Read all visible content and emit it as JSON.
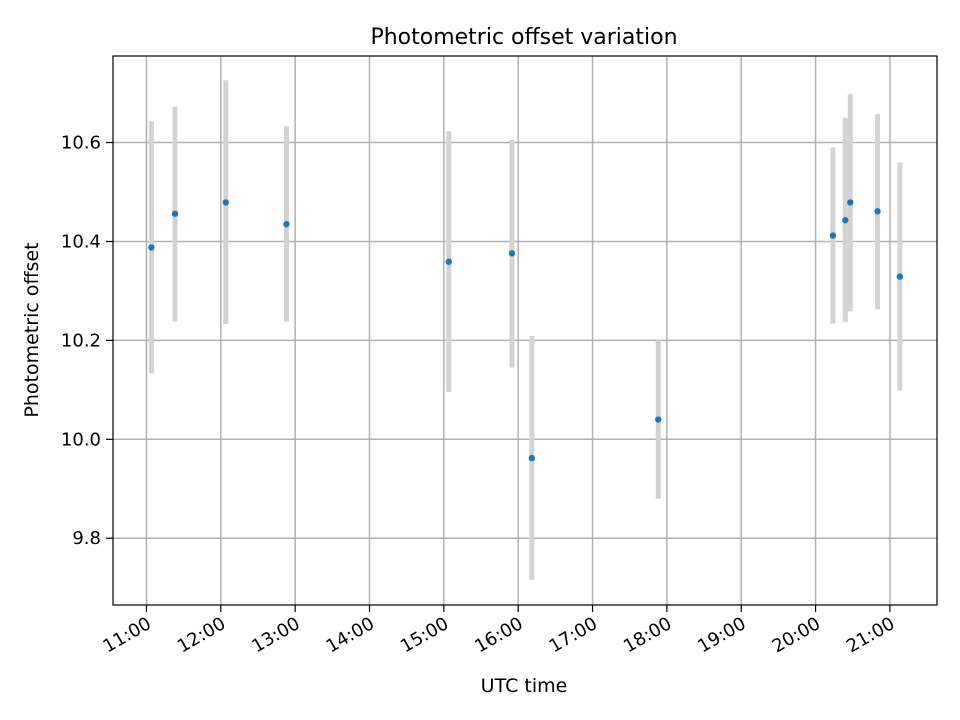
{
  "chart_data": {
    "type": "scatter",
    "title": "Photometric offset variation",
    "xlabel": "UTC time",
    "ylabel": "Photometric offset",
    "xlim": [
      "10:33",
      "21:38"
    ],
    "ylim": [
      9.665,
      10.775
    ],
    "x_ticks": [
      "11:00",
      "12:00",
      "13:00",
      "14:00",
      "15:00",
      "16:00",
      "17:00",
      "18:00",
      "19:00",
      "20:00",
      "21:00"
    ],
    "y_ticks": [
      "9.8",
      "10.0",
      "10.2",
      "10.4",
      "10.6"
    ],
    "grid": true,
    "legend": "none",
    "colors": {
      "point": "#1f77b4",
      "errorbar": "#d3d3d3",
      "grid": "#b0b0b0"
    },
    "points": [
      {
        "time": "11:04",
        "y": 10.388,
        "y_lo": 10.133,
        "y_hi": 10.643
      },
      {
        "time": "11:23",
        "y": 10.456,
        "y_lo": 10.238,
        "y_hi": 10.673
      },
      {
        "time": "12:04",
        "y": 10.479,
        "y_lo": 10.233,
        "y_hi": 10.726
      },
      {
        "time": "12:53",
        "y": 10.435,
        "y_lo": 10.238,
        "y_hi": 10.633
      },
      {
        "time": "15:04",
        "y": 10.359,
        "y_lo": 10.096,
        "y_hi": 10.623
      },
      {
        "time": "15:55",
        "y": 10.376,
        "y_lo": 10.145,
        "y_hi": 10.605
      },
      {
        "time": "16:11",
        "y": 9.962,
        "y_lo": 9.716,
        "y_hi": 10.209
      },
      {
        "time": "17:53",
        "y": 10.04,
        "y_lo": 9.88,
        "y_hi": 10.2
      },
      {
        "time": "20:14",
        "y": 10.412,
        "y_lo": 10.234,
        "y_hi": 10.59
      },
      {
        "time": "20:24",
        "y": 10.443,
        "y_lo": 10.237,
        "y_hi": 10.65
      },
      {
        "time": "20:28",
        "y": 10.479,
        "y_lo": 10.259,
        "y_hi": 10.698
      },
      {
        "time": "20:50",
        "y": 10.461,
        "y_lo": 10.263,
        "y_hi": 10.658
      },
      {
        "time": "21:08",
        "y": 10.329,
        "y_lo": 10.099,
        "y_hi": 10.56
      }
    ]
  }
}
